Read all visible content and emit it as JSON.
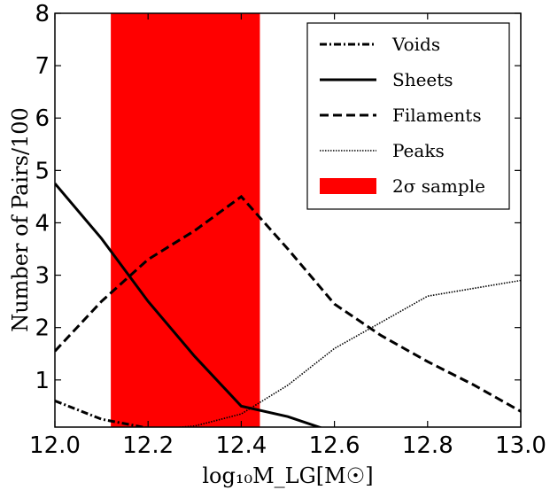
{
  "chart_data": {
    "type": "line",
    "xlabel": "log₁₀M_LG[M☉]",
    "ylabel": "Number of Pairs/100",
    "xlim": [
      12.0,
      13.0
    ],
    "ylim": [
      0.1,
      8.0
    ],
    "x_ticks": [
      "12.0",
      "12.2",
      "12.4",
      "12.6",
      "12.8",
      "13.0"
    ],
    "y_ticks": [
      "1",
      "2",
      "3",
      "4",
      "5",
      "6",
      "7",
      "8"
    ],
    "grid": false,
    "legend_position": "top-right",
    "shaded_region": {
      "name": "2σ sample",
      "x_start": 12.12,
      "x_end": 12.44,
      "color": "#ff0000"
    },
    "series": [
      {
        "name": "Voids",
        "style": "dashdot",
        "x": [
          12.0,
          12.1,
          12.2,
          12.3,
          12.4
        ],
        "y": [
          0.6,
          0.25,
          0.08,
          0.02,
          0.0
        ]
      },
      {
        "name": "Sheets",
        "style": "solid",
        "x": [
          12.0,
          12.1,
          12.2,
          12.3,
          12.4,
          12.5,
          12.6
        ],
        "y": [
          4.75,
          3.7,
          2.5,
          1.45,
          0.5,
          0.3,
          0.0
        ]
      },
      {
        "name": "Filaments",
        "style": "dashed",
        "x": [
          12.0,
          12.1,
          12.2,
          12.3,
          12.4,
          12.5,
          12.6,
          12.7,
          12.8,
          12.9,
          13.0
        ],
        "y": [
          1.55,
          2.5,
          3.3,
          3.85,
          4.5,
          3.5,
          2.45,
          1.85,
          1.35,
          0.9,
          0.4
        ]
      },
      {
        "name": "Peaks",
        "style": "dotted",
        "x": [
          12.0,
          12.2,
          12.3,
          12.4,
          12.5,
          12.6,
          12.7,
          12.8,
          12.9,
          13.0
        ],
        "y": [
          0.0,
          0.05,
          0.12,
          0.35,
          0.9,
          1.6,
          2.1,
          2.6,
          2.75,
          2.9
        ]
      }
    ]
  }
}
